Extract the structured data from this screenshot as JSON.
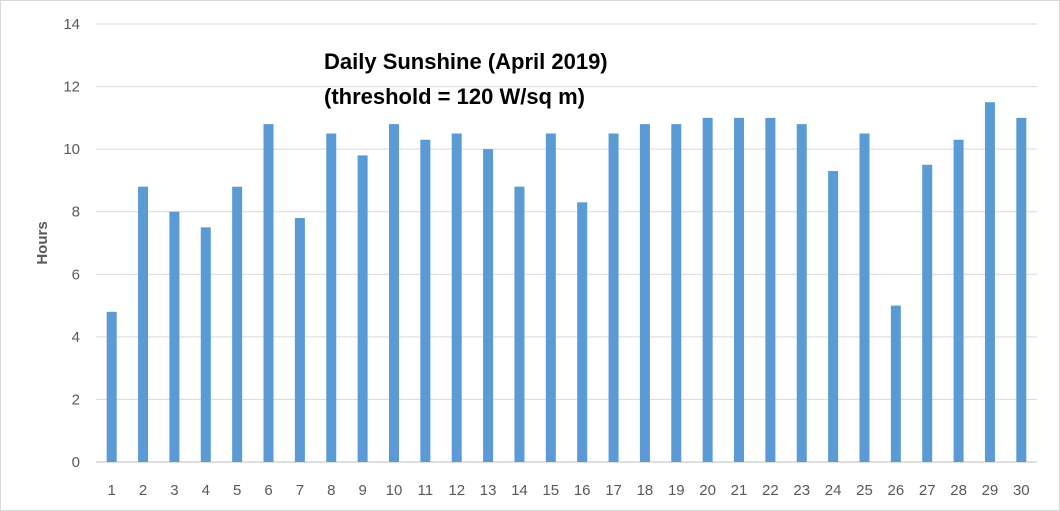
{
  "chart_data": {
    "type": "bar",
    "title_lines": [
      "Daily Sunshine (April 2019)",
      "(threshold = 120 W/sq m)"
    ],
    "xlabel": "",
    "ylabel": "Hours",
    "ylim": [
      0,
      14
    ],
    "yticks": [
      0,
      2,
      4,
      6,
      8,
      10,
      12,
      14
    ],
    "grid": true,
    "legend": "none",
    "bar_color": "#5B9BD5",
    "categories": [
      "1",
      "2",
      "3",
      "4",
      "5",
      "6",
      "7",
      "8",
      "9",
      "10",
      "11",
      "12",
      "13",
      "14",
      "15",
      "16",
      "17",
      "18",
      "19",
      "20",
      "21",
      "22",
      "23",
      "24",
      "25",
      "26",
      "27",
      "28",
      "29",
      "30"
    ],
    "values": [
      4.8,
      8.8,
      8.0,
      7.5,
      8.8,
      10.8,
      7.8,
      10.5,
      9.8,
      10.8,
      10.3,
      10.5,
      10.0,
      8.8,
      10.5,
      8.3,
      10.5,
      10.8,
      10.8,
      11.0,
      11.0,
      11.0,
      10.8,
      9.3,
      10.5,
      5.0,
      9.5,
      10.3,
      11.5,
      11.0
    ]
  }
}
